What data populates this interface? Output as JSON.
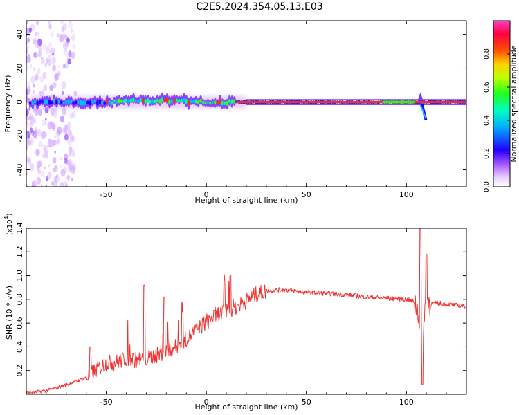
{
  "page": {
    "title": "C2E5.2024.354.05.13.E03"
  },
  "chart_data": [
    {
      "type": "heatmap",
      "title": "",
      "xlabel": "Height of straight line (km)",
      "ylabel": "Frequency (Hz)",
      "xlim": [
        -90,
        130
      ],
      "ylim": [
        -50,
        48
      ],
      "x_ticks": [
        "-50",
        "0",
        "50",
        "100"
      ],
      "y_ticks": [
        "40",
        "20",
        "0",
        "-20",
        "-40"
      ],
      "x_tick_values": [
        -50,
        0,
        50,
        100
      ],
      "y_tick_values": [
        40,
        20,
        0,
        -20,
        -40
      ],
      "colorbar": {
        "label": "Normalized spectral amplitude",
        "range": [
          0,
          1
        ],
        "ticks": [
          "0.0",
          "0.2",
          "0.4",
          "0.6",
          "0.8"
        ],
        "tick_values": [
          0.0,
          0.2,
          0.4,
          0.6,
          0.8
        ],
        "colors": [
          "#ffffff",
          "#d8b0ff",
          "#8030ff",
          "#2000ff",
          "#00c0ff",
          "#00ff90",
          "#40ff00",
          "#e0ff00",
          "#ffb000",
          "#ff3000",
          "#ff0080"
        ]
      },
      "band": {
        "center_hz": 0,
        "start_km": -88,
        "end_km": 130,
        "notes_visible": false
      },
      "grid": false,
      "legend": "right"
    },
    {
      "type": "line",
      "title": "",
      "xlabel": "Height of straight line (km)",
      "ylabel": "SNR (10 * v/v)",
      "y_exponent_label": "(x10",
      "y_exponent": "4",
      "xlim": [
        -90,
        130
      ],
      "ylim": [
        0,
        1.4
      ],
      "x_ticks": [
        "-50",
        "0",
        "50",
        "100"
      ],
      "y_ticks": [
        "0.2",
        "0.4",
        "0.6",
        "0.8",
        "1.0",
        "1.2",
        "1.4"
      ],
      "x_tick_values": [
        -50,
        0,
        50,
        100
      ],
      "y_tick_values": [
        0.2,
        0.4,
        0.6,
        0.8,
        1.0,
        1.2,
        1.4
      ],
      "series": [
        {
          "color": "#ee3333",
          "x": [
            -90,
            -80,
            -70,
            -60,
            -55,
            -50,
            -45,
            -40,
            -35,
            -30,
            -25,
            -20,
            -15,
            -10,
            -5,
            0,
            5,
            10,
            15,
            20,
            25,
            30,
            35,
            40,
            50,
            60,
            70,
            80,
            90,
            100,
            104,
            106,
            108,
            110,
            112,
            115,
            120,
            125,
            130
          ],
          "y": [
            0.01,
            0.03,
            0.08,
            0.14,
            0.21,
            0.26,
            0.27,
            0.3,
            0.29,
            0.3,
            0.33,
            0.36,
            0.4,
            0.47,
            0.54,
            0.61,
            0.67,
            0.7,
            0.74,
            0.79,
            0.84,
            0.87,
            0.88,
            0.88,
            0.86,
            0.85,
            0.84,
            0.82,
            0.81,
            0.8,
            0.78,
            0.7,
            0.5,
            0.82,
            0.76,
            0.77,
            0.76,
            0.75,
            0.74
          ]
        }
      ],
      "spikes": [
        {
          "x": -58,
          "y": 0.4
        },
        {
          "x": -31,
          "y": 0.92
        },
        {
          "x": -21,
          "y": 0.82
        },
        {
          "x": -12,
          "y": 0.78
        },
        {
          "x": 9,
          "y": 0.95
        },
        {
          "x": 12,
          "y": 1.0
        },
        {
          "x": 107,
          "y": 1.42
        },
        {
          "x": 108,
          "y": 0.08
        },
        {
          "x": 110,
          "y": 1.18
        }
      ],
      "grid": false
    }
  ]
}
